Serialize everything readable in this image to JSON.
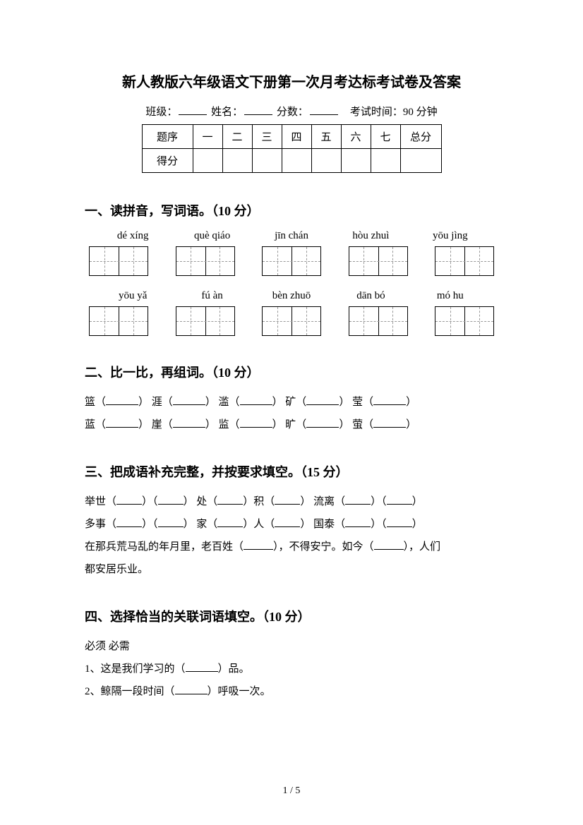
{
  "title": "新人教版六年级语文下册第一次月考达标考试卷及答案",
  "header": {
    "class_label": "班级：",
    "name_label": "姓名：",
    "score_label": "分数：",
    "exam_time": "考试时间：90 分钟"
  },
  "score_table": {
    "row1_label": "题序",
    "row2_label": "得分",
    "cols": [
      "一",
      "二",
      "三",
      "四",
      "五",
      "六",
      "七"
    ],
    "total_label": "总分"
  },
  "section1": {
    "title": "一、读拼音，写词语。（10 分）",
    "row1_pinyin": [
      "dé xíng",
      "què qiáo",
      "jīn chán",
      "hòu zhuì",
      "yōu jìng"
    ],
    "row2_pinyin": [
      "yōu yǎ",
      "fú àn",
      "bèn zhuō",
      "dān bó",
      "mó hu"
    ]
  },
  "section2": {
    "title": "二、比一比，再组词。（10 分）",
    "row1": [
      "篮（",
      "）  涯（",
      "）  滥（",
      "）  矿（",
      "）  莹（",
      "）"
    ],
    "row2": [
      "蓝（",
      "）  崖（",
      "）  监（",
      "）  旷（",
      "）  萤（",
      "）"
    ]
  },
  "section3": {
    "title": "三、把成语补充完整，并按要求填空。（15 分）",
    "line1_a": "举世（",
    "line1_b": "）（",
    "line1_c": "）   处（",
    "line1_d": "）积（",
    "line1_e": "）   流离（",
    "line1_f": "）（",
    "line1_g": "）",
    "line2_a": "多事（",
    "line2_b": "）（",
    "line2_c": "）   家（",
    "line2_d": "）人（",
    "line2_e": "）   国泰（",
    "line2_f": "）（",
    "line2_g": "）",
    "line3_a": "在那兵荒马乱的年月里，老百姓（",
    "line3_b": "），不得安宁。如今（",
    "line3_c": "），人们",
    "line4": "都安居乐业。"
  },
  "section4": {
    "title": "四、选择恰当的关联词语填空。（10 分）",
    "words": "必须       必需",
    "line1_a": "1、这是我们学习的（",
    "line1_b": "）品。",
    "line2_a": "2、鲸隔一段时间（",
    "line2_b": "）呼吸一次。"
  },
  "page_num": "1 / 5"
}
